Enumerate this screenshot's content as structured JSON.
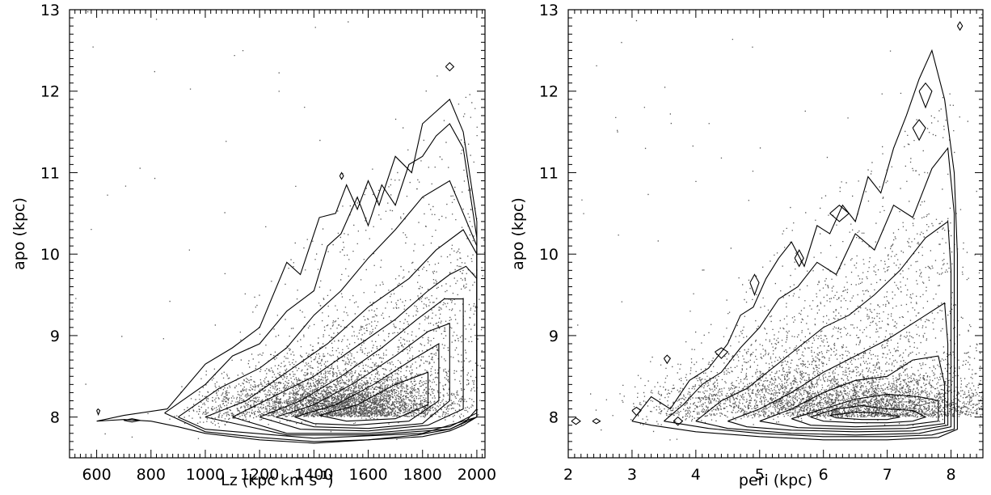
{
  "chart_data": [
    {
      "type": "scatter",
      "title": "",
      "xlabel": "Lz (kpc km s",
      "xlabel_superscript": "-1",
      "xlabel_suffix": ")",
      "ylabel": "apo (kpc)",
      "xlim": [
        500,
        2030
      ],
      "ylim": [
        7.5,
        13.0
      ],
      "x_ticks": [
        600,
        800,
        1000,
        1200,
        1400,
        1600,
        1800,
        2000
      ],
      "x_tick_labels": [
        "600",
        "800",
        "1000",
        "1200",
        "1400",
        "1600",
        "1800",
        "2000"
      ],
      "y_ticks": [
        8,
        9,
        10,
        11,
        12,
        13
      ],
      "y_tick_labels": [
        "8",
        "9",
        "10",
        "11",
        "12",
        "13"
      ],
      "grid": false,
      "points_color": "#555555",
      "density": {
        "peak": [
          1530,
          8.05
        ],
        "spread": [
          180,
          0.32
        ],
        "ridge_from": [
          1000,
          7.9
        ],
        "ridge_to": [
          2000,
          10.0
        ]
      },
      "contours": [
        {
          "x": [
            600,
            700,
            860,
            1000,
            1100,
            1200,
            1300,
            1350,
            1420,
            1480,
            1520,
            1560,
            1600,
            1640,
            1700,
            1760,
            1800,
            1850,
            1900,
            1950,
            2000,
            2000,
            1960,
            1900,
            1780,
            1600,
            1400,
            1200,
            1000,
            900,
            800,
            700,
            600
          ],
          "y": [
            7.95,
            8.02,
            8.1,
            8.65,
            8.85,
            9.1,
            9.9,
            9.75,
            10.45,
            10.5,
            10.85,
            10.55,
            10.9,
            10.6,
            11.2,
            11.0,
            11.6,
            11.75,
            11.9,
            11.5,
            10.4,
            8.1,
            7.95,
            7.85,
            7.78,
            7.72,
            7.68,
            7.72,
            7.8,
            7.88,
            7.95,
            7.97,
            7.95
          ]
        },
        {
          "x": [
            850,
            1000,
            1100,
            1200,
            1300,
            1400,
            1450,
            1500,
            1560,
            1600,
            1650,
            1700,
            1750,
            1800,
            1850,
            1900,
            1950,
            2000,
            2000,
            1950,
            1900,
            1800,
            1600,
            1400,
            1200,
            1000,
            850
          ],
          "y": [
            8.05,
            8.4,
            8.75,
            8.9,
            9.3,
            9.55,
            10.1,
            10.25,
            10.7,
            10.35,
            10.85,
            10.6,
            11.1,
            11.2,
            11.45,
            11.6,
            11.3,
            10.2,
            8.0,
            7.9,
            7.83,
            7.76,
            7.72,
            7.7,
            7.75,
            7.82,
            8.05
          ]
        },
        {
          "x": [
            900,
            1050,
            1200,
            1300,
            1400,
            1500,
            1600,
            1700,
            1800,
            1900,
            2000,
            2000,
            1800,
            1400,
            1000,
            900
          ],
          "y": [
            8.0,
            8.35,
            8.6,
            8.85,
            9.25,
            9.55,
            9.95,
            10.3,
            10.7,
            10.9,
            10.1,
            8.0,
            7.8,
            7.74,
            7.85,
            8.0
          ]
        },
        {
          "x": [
            1000,
            1150,
            1300,
            1450,
            1600,
            1750,
            1850,
            1950,
            2000,
            2000,
            1900,
            1600,
            1300,
            1000
          ],
          "y": [
            8.0,
            8.2,
            8.55,
            8.9,
            9.35,
            9.7,
            10.05,
            10.3,
            10.0,
            8.0,
            7.85,
            7.78,
            7.78,
            8.0
          ]
        },
        {
          "x": [
            1100,
            1250,
            1400,
            1550,
            1700,
            1820,
            1900,
            1960,
            2000,
            2000,
            1900,
            1600,
            1300,
            1100
          ],
          "y": [
            8.0,
            8.25,
            8.5,
            8.85,
            9.2,
            9.55,
            9.75,
            9.85,
            9.7,
            8.05,
            7.88,
            7.8,
            7.8,
            8.0
          ]
        },
        {
          "x": [
            1200,
            1350,
            1500,
            1650,
            1780,
            1880,
            1950,
            1950,
            1820,
            1600,
            1350,
            1200
          ],
          "y": [
            8.0,
            8.2,
            8.5,
            8.85,
            9.2,
            9.45,
            9.45,
            8.1,
            7.9,
            7.83,
            7.85,
            8.0
          ]
        },
        {
          "x": [
            1260,
            1400,
            1550,
            1700,
            1820,
            1900,
            1900,
            1800,
            1600,
            1400,
            1260
          ],
          "y": [
            8.0,
            8.15,
            8.42,
            8.75,
            9.05,
            9.15,
            8.2,
            7.92,
            7.86,
            7.88,
            8.0
          ]
        },
        {
          "x": [
            1330,
            1480,
            1620,
            1760,
            1860,
            1860,
            1750,
            1550,
            1400,
            1330
          ],
          "y": [
            8.0,
            8.15,
            8.4,
            8.7,
            8.9,
            8.2,
            7.95,
            7.9,
            7.92,
            8.0
          ]
        },
        {
          "x": [
            1420,
            1560,
            1700,
            1820,
            1820,
            1700,
            1520,
            1420
          ],
          "y": [
            8.02,
            8.15,
            8.4,
            8.55,
            8.15,
            7.98,
            7.95,
            8.02
          ]
        }
      ],
      "islands": [
        {
          "x": [
            1885,
            1900,
            1915,
            1900,
            1885
          ],
          "y": [
            12.3,
            12.35,
            12.3,
            12.25,
            12.3
          ]
        },
        {
          "x": [
            1495,
            1502,
            1509,
            1502,
            1495
          ],
          "y": [
            10.96,
            11.0,
            10.96,
            10.92,
            10.96
          ]
        },
        {
          "x": [
            600,
            605,
            612,
            606,
            600
          ],
          "y": [
            8.08,
            8.1,
            8.08,
            8.03,
            8.08
          ]
        },
        {
          "x": [
            700,
            730,
            760,
            730,
            700
          ],
          "y": [
            7.96,
            7.98,
            7.96,
            7.94,
            7.96
          ]
        }
      ]
    },
    {
      "type": "scatter",
      "title": "",
      "xlabel": "peri (kpc)",
      "ylabel": "apo (kpc)",
      "xlim": [
        2.0,
        8.5
      ],
      "ylim": [
        7.5,
        13.0
      ],
      "x_ticks": [
        2,
        3,
        4,
        5,
        6,
        7,
        8
      ],
      "x_tick_labels": [
        "2",
        "3",
        "4",
        "5",
        "6",
        "7",
        "8"
      ],
      "y_ticks": [
        8,
        9,
        10,
        11,
        12,
        13
      ],
      "y_tick_labels": [
        "8",
        "9",
        "10",
        "11",
        "12",
        "13"
      ],
      "grid": false,
      "points_color": "#555555",
      "density": {
        "peak": [
          6.6,
          8.05
        ],
        "spread": [
          1.2,
          0.35
        ],
        "ridge_from": [
          3.5,
          7.9
        ],
        "ridge_to": [
          8.05,
          10.5
        ]
      },
      "contours": [
        {
          "x": [
            3.0,
            3.3,
            3.6,
            3.9,
            4.2,
            4.5,
            4.7,
            4.9,
            5.1,
            5.3,
            5.5,
            5.7,
            5.9,
            6.1,
            6.3,
            6.5,
            6.7,
            6.9,
            7.1,
            7.3,
            7.5,
            7.7,
            7.9,
            8.05,
            8.1,
            8.1,
            7.8,
            7.0,
            6.0,
            5.0,
            4.0,
            3.3,
            3.0
          ],
          "y": [
            7.95,
            8.25,
            8.1,
            8.45,
            8.6,
            8.9,
            9.25,
            9.35,
            9.7,
            9.95,
            10.15,
            9.85,
            10.35,
            10.25,
            10.6,
            10.4,
            10.95,
            10.75,
            11.3,
            11.7,
            12.15,
            12.5,
            11.9,
            11.0,
            10.0,
            7.85,
            7.75,
            7.72,
            7.72,
            7.76,
            7.82,
            7.9,
            7.95
          ]
        },
        {
          "x": [
            3.5,
            3.8,
            4.1,
            4.4,
            4.7,
            5.0,
            5.3,
            5.6,
            5.9,
            6.2,
            6.5,
            6.8,
            7.1,
            7.4,
            7.7,
            7.95,
            8.05,
            8.05,
            7.7,
            7.0,
            6.0,
            5.0,
            4.2,
            3.5
          ],
          "y": [
            7.95,
            8.15,
            8.4,
            8.55,
            8.85,
            9.1,
            9.45,
            9.6,
            9.9,
            9.75,
            10.25,
            10.05,
            10.6,
            10.45,
            11.05,
            11.3,
            10.5,
            7.85,
            7.78,
            7.76,
            7.76,
            7.8,
            7.86,
            7.95
          ]
        },
        {
          "x": [
            4.0,
            4.4,
            4.8,
            5.2,
            5.6,
            6.0,
            6.4,
            6.8,
            7.2,
            7.6,
            7.95,
            8.0,
            8.0,
            7.5,
            6.5,
            5.5,
            4.5,
            4.0
          ],
          "y": [
            7.95,
            8.2,
            8.35,
            8.6,
            8.85,
            9.1,
            9.25,
            9.5,
            9.8,
            10.2,
            10.4,
            9.8,
            7.88,
            7.8,
            7.78,
            7.8,
            7.86,
            7.95
          ]
        },
        {
          "x": [
            4.5,
            5.0,
            5.5,
            6.0,
            6.5,
            7.0,
            7.5,
            7.9,
            7.95,
            7.95,
            7.4,
            6.5,
            5.5,
            4.8,
            4.5
          ],
          "y": [
            7.95,
            8.1,
            8.3,
            8.55,
            8.75,
            8.95,
            9.2,
            9.4,
            8.9,
            7.9,
            7.83,
            7.82,
            7.84,
            7.88,
            7.95
          ]
        },
        {
          "x": [
            5.0,
            5.5,
            6.0,
            6.5,
            7.0,
            7.4,
            7.8,
            7.9,
            7.9,
            7.3,
            6.5,
            5.6,
            5.0
          ],
          "y": [
            7.95,
            8.1,
            8.3,
            8.45,
            8.5,
            8.7,
            8.75,
            8.4,
            7.92,
            7.86,
            7.85,
            7.87,
            7.95
          ]
        },
        {
          "x": [
            5.5,
            6.0,
            6.5,
            7.0,
            7.5,
            7.8,
            7.8,
            7.3,
            6.5,
            5.8,
            5.5
          ],
          "y": [
            7.98,
            8.1,
            8.22,
            8.28,
            8.25,
            8.2,
            7.95,
            7.9,
            7.88,
            7.9,
            7.98
          ]
        },
        {
          "x": [
            5.8,
            6.2,
            6.6,
            7.0,
            7.4,
            7.6,
            7.4,
            7.0,
            6.5,
            6.0,
            5.8
          ],
          "y": [
            8.0,
            8.1,
            8.14,
            8.1,
            8.08,
            8.0,
            7.95,
            7.93,
            7.93,
            7.95,
            8.0
          ]
        },
        {
          "x": [
            6.1,
            6.5,
            6.9,
            7.2,
            7.0,
            6.6,
            6.2,
            6.1
          ],
          "y": [
            8.02,
            8.06,
            8.05,
            8.0,
            7.97,
            7.97,
            7.99,
            8.02
          ]
        }
      ],
      "islands": [
        {
          "x": [
            7.5,
            7.6,
            7.7,
            7.6,
            7.5
          ],
          "y": [
            12.0,
            12.1,
            12.0,
            11.8,
            12.0
          ]
        },
        {
          "x": [
            7.4,
            7.5,
            7.6,
            7.5,
            7.4
          ],
          "y": [
            11.55,
            11.65,
            11.55,
            11.4,
            11.55
          ]
        },
        {
          "x": [
            8.1,
            8.14,
            8.18,
            8.14,
            8.1
          ],
          "y": [
            12.8,
            12.85,
            12.8,
            12.75,
            12.8
          ]
        },
        {
          "x": [
            6.1,
            6.25,
            6.4,
            6.25,
            6.1
          ],
          "y": [
            10.5,
            10.6,
            10.5,
            10.4,
            10.5
          ]
        },
        {
          "x": [
            4.85,
            4.92,
            4.99,
            4.92,
            4.85
          ],
          "y": [
            9.65,
            9.75,
            9.65,
            9.5,
            9.65
          ]
        },
        {
          "x": [
            5.55,
            5.62,
            5.69,
            5.62,
            5.55
          ],
          "y": [
            9.95,
            10.05,
            9.95,
            9.85,
            9.95
          ]
        },
        {
          "x": [
            4.3,
            4.4,
            4.5,
            4.4,
            4.3
          ],
          "y": [
            8.8,
            8.85,
            8.8,
            8.72,
            8.8
          ]
        },
        {
          "x": [
            3.5,
            3.55,
            3.6,
            3.55,
            3.5
          ],
          "y": [
            8.72,
            8.76,
            8.72,
            8.66,
            8.72
          ]
        },
        {
          "x": [
            3.0,
            3.07,
            3.14,
            3.07,
            3.0
          ],
          "y": [
            8.08,
            8.12,
            8.08,
            8.02,
            8.08
          ]
        },
        {
          "x": [
            2.05,
            2.12,
            2.19,
            2.12,
            2.05
          ],
          "y": [
            7.95,
            7.99,
            7.95,
            7.91,
            7.95
          ]
        },
        {
          "x": [
            2.38,
            2.44,
            2.5,
            2.44,
            2.38
          ],
          "y": [
            7.95,
            7.98,
            7.95,
            7.92,
            7.95
          ]
        },
        {
          "x": [
            3.65,
            3.72,
            3.79,
            3.72,
            3.65
          ],
          "y": [
            7.95,
            8.0,
            7.95,
            7.9,
            7.95
          ]
        }
      ]
    }
  ]
}
